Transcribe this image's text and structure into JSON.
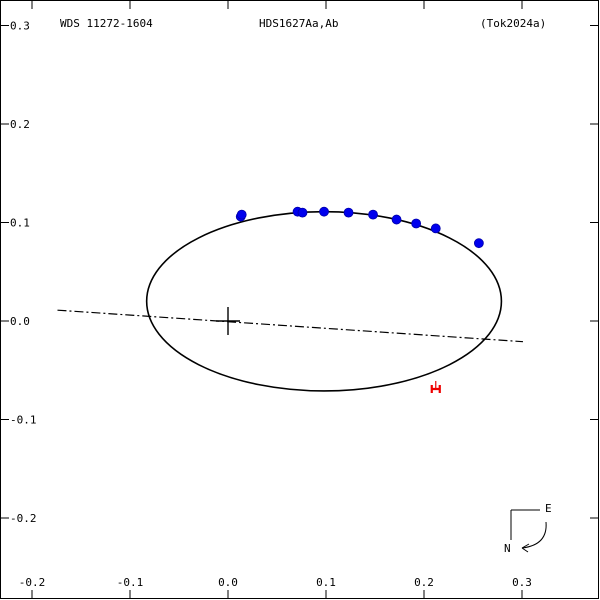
{
  "header": {
    "left": "WDS 11272-1604",
    "center": "HDS1627Aa,Ab",
    "right": "(Tok2024a)"
  },
  "compass": {
    "east": "E",
    "north": "N"
  },
  "colors": {
    "frame": "#000000",
    "orbit": "#000000",
    "observations": "#0000ee",
    "speckle_marker": "#ee0000"
  },
  "chart_data": {
    "type": "scatter",
    "x_ticks": [
      "-0.2",
      "-0.1",
      "0.0",
      "0.1",
      "0.2",
      "0.3"
    ],
    "y_ticks": [
      "0.3",
      "0.2",
      "0.1",
      "0.0",
      "-0.1",
      "-0.2"
    ],
    "xlim": [
      -0.2,
      0.37
    ],
    "ylim": [
      -0.265,
      0.31
    ],
    "orbit_ellipse": {
      "center": [
        0.098,
        0.02
      ],
      "semi_axis_x": 0.181,
      "semi_axis_y": 0.091,
      "rotation_deg": 0
    },
    "line_of_nodes": [
      [
        -0.174,
        0.011
      ],
      [
        0.301,
        -0.021
      ]
    ],
    "primary": [
      0.0,
      0.0
    ],
    "series": [
      {
        "values": [
          [
            0.013,
            0.106
          ],
          [
            0.014,
            0.108
          ],
          [
            0.071,
            0.111
          ],
          [
            0.076,
            0.11
          ],
          [
            0.098,
            0.111
          ],
          [
            0.123,
            0.11
          ],
          [
            0.148,
            0.108
          ],
          [
            0.172,
            0.103
          ],
          [
            0.192,
            0.099
          ],
          [
            0.212,
            0.094
          ],
          [
            0.256,
            0.079
          ]
        ]
      },
      {
        "marker": "H",
        "values": [
          [
            0.212,
            -0.068
          ]
        ]
      }
    ]
  }
}
